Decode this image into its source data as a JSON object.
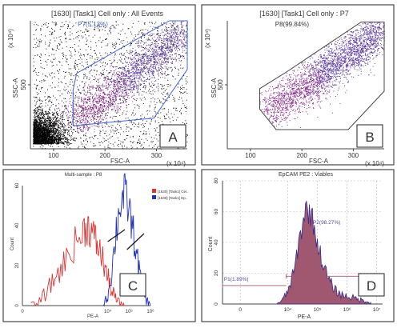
{
  "chart_data": [
    {
      "panel": "A",
      "type": "scatter",
      "title": "[1630] [Task1] Cell only : All Events",
      "xlabel": "FSC-A",
      "ylabel": "SSC-A",
      "x_exponent": "(x 10⁴)",
      "y_exponent": "(x 10⁴)",
      "xlim": [
        55,
        360
      ],
      "ylim": [
        0,
        1000
      ],
      "xticks": [
        {
          "v": 100,
          "label": "100"
        },
        {
          "v": 200,
          "label": "200"
        },
        {
          "v": 300,
          "label": "300"
        }
      ],
      "yticks": [
        {
          "v": 500,
          "label": "500"
        }
      ],
      "gate": {
        "name": "P7",
        "label": "P7(5.13%)",
        "color": "#4466cc",
        "polygon": [
          [
            138,
            460
          ],
          [
            145,
            590
          ],
          [
            325,
            1000
          ],
          [
            360,
            1000
          ],
          [
            360,
            620
          ],
          [
            295,
            240
          ],
          [
            138,
            180
          ]
        ]
      },
      "panel_letter": "A"
    },
    {
      "panel": "B",
      "type": "scatter",
      "title": "[1630] [Task1] Cell only : P7",
      "xlabel": "FSC-A",
      "ylabel": "SSC-A",
      "x_exponent": "(x 10⁴)",
      "y_exponent": "(x 10⁴)",
      "xlim": [
        55,
        360
      ],
      "ylim": [
        0,
        1000
      ],
      "xticks": [
        {
          "v": 100,
          "label": "100"
        },
        {
          "v": 200,
          "label": "200"
        },
        {
          "v": 300,
          "label": "300"
        }
      ],
      "yticks": [
        {
          "v": 500,
          "label": "500"
        }
      ],
      "gate": {
        "name": "P8",
        "label": "P8(99.84%)",
        "color": "#444444",
        "polygon": [
          [
            118,
            310
          ],
          [
            118,
            470
          ],
          [
            170,
            600
          ],
          [
            315,
            990
          ],
          [
            360,
            990
          ],
          [
            360,
            450
          ],
          [
            290,
            150
          ],
          [
            150,
            150
          ]
        ]
      },
      "panel_letter": "B"
    },
    {
      "panel": "C",
      "type": "line",
      "title": "Multi-sample : P8",
      "xlabel": "PE-A",
      "ylabel": "Count",
      "xlim": [
        0,
        6
      ],
      "ylim": [
        0,
        60
      ],
      "xticks": [
        {
          "v": 0,
          "label": "0"
        },
        {
          "v": 4,
          "label": "10⁴"
        },
        {
          "v": 5,
          "label": "10⁵"
        },
        {
          "v": 6,
          "label": "10⁶"
        }
      ],
      "yticks": [
        {
          "v": 0,
          "label": "0"
        },
        {
          "v": 20,
          "label": "20"
        },
        {
          "v": 40,
          "label": "40"
        },
        {
          "v": 60,
          "label": "60"
        }
      ],
      "legend": "top-right",
      "series": [
        {
          "name": "[1630] [Task1] Cel..",
          "color": "#dd3333",
          "x": [
            0.4,
            0.8,
            1.2,
            1.6,
            2.0,
            2.4,
            2.8,
            3.0,
            3.2,
            3.4,
            3.6,
            3.8,
            4.0,
            4.2,
            4.4,
            4.6,
            4.8
          ],
          "y": [
            0,
            2,
            8,
            15,
            22,
            30,
            36,
            40,
            38,
            33,
            28,
            22,
            14,
            7,
            3,
            1,
            0
          ]
        },
        {
          "name": "[1630] [Task1] Ep..",
          "color": "#2233bb",
          "x": [
            3.8,
            4.0,
            4.2,
            4.4,
            4.6,
            4.8,
            5.0,
            5.2,
            5.4,
            5.6,
            5.8,
            6.0
          ],
          "y": [
            0,
            5,
            18,
            38,
            52,
            55,
            48,
            36,
            22,
            10,
            3,
            0
          ]
        }
      ],
      "gates": [
        {
          "x1": 4.0,
          "y1": 32,
          "x2": 4.8,
          "y2": 38
        },
        {
          "x1": 4.9,
          "y1": 28,
          "x2": 5.7,
          "y2": 36
        }
      ],
      "panel_letter": "C"
    },
    {
      "panel": "D",
      "type": "area",
      "title": "EpCAM PE2 : Viables",
      "xlabel": "PE-A",
      "ylabel": "Count",
      "xlim": [
        1.8,
        7.2
      ],
      "ylim": [
        0,
        80
      ],
      "xticks": [
        {
          "v": 2.4,
          "label": "0"
        },
        {
          "v": 4,
          "label": "10⁴"
        },
        {
          "v": 5,
          "label": "10⁵"
        },
        {
          "v": 6,
          "label": "10⁶"
        },
        {
          "v": 7,
          "label": "10⁷"
        }
      ],
      "yticks": [
        {
          "v": 0,
          "label": "0"
        },
        {
          "v": 20,
          "label": "20"
        },
        {
          "v": 40,
          "label": "40"
        },
        {
          "v": 60,
          "label": "60"
        },
        {
          "v": 80,
          "label": "80"
        }
      ],
      "series": [
        {
          "name": "",
          "fill": "#a05870",
          "stroke": "#3a2a8a",
          "x": [
            3.6,
            3.8,
            4.0,
            4.2,
            4.4,
            4.6,
            4.8,
            5.0,
            5.2,
            5.4,
            5.6,
            5.8,
            6.0,
            6.2,
            6.4,
            6.6,
            6.8
          ],
          "y": [
            0,
            2,
            8,
            20,
            42,
            62,
            58,
            40,
            25,
            15,
            9,
            6,
            5,
            4,
            3,
            2,
            1
          ]
        }
      ],
      "gates": [
        {
          "label": "P1(1.89%)",
          "x1": 1.8,
          "x2": 3.95,
          "y": 12
        },
        {
          "label": "P2(98.27%)",
          "x1": 3.95,
          "x2": 7.2,
          "y": 18
        }
      ],
      "panel_letter": "D"
    }
  ]
}
